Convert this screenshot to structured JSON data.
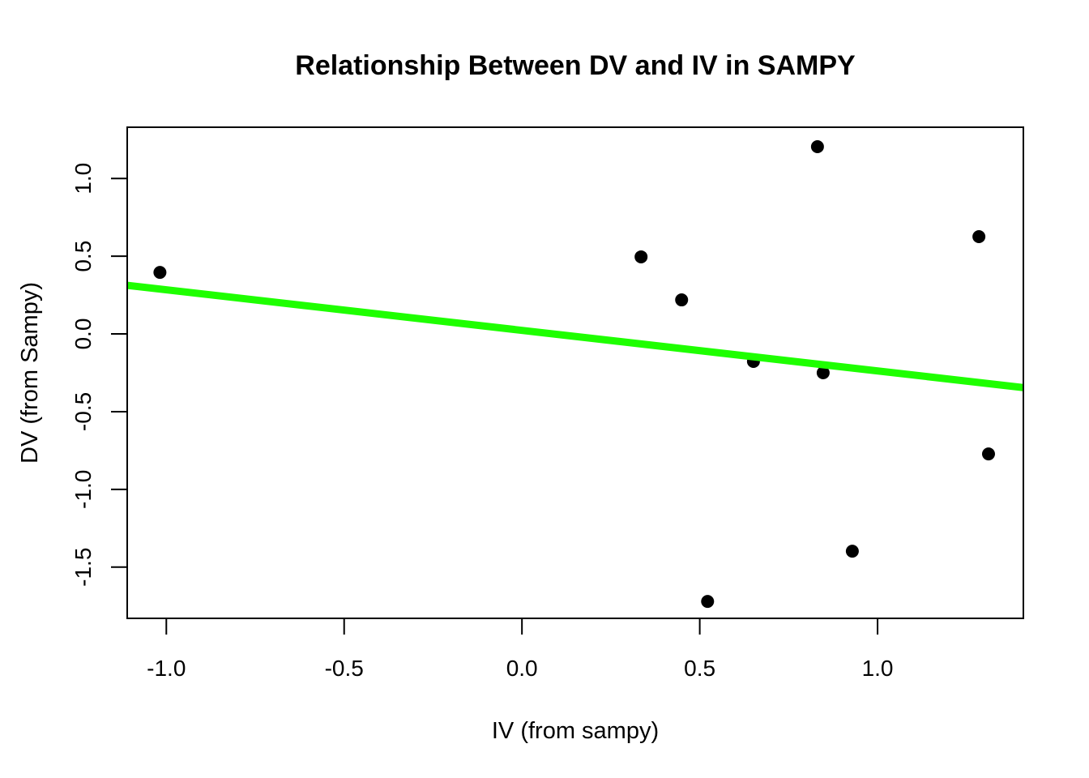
{
  "chart_data": {
    "type": "scatter",
    "title": "Relationship Between DV and IV in SAMPY",
    "xlabel": "IV (from sampy)",
    "ylabel": "DV (from Sampy)",
    "xlim": [
      -1.11,
      1.41
    ],
    "ylim": [
      -1.83,
      1.33
    ],
    "xticks": [
      -1.0,
      -0.5,
      0.0,
      0.5,
      1.0
    ],
    "xtick_labels": [
      "-1.0",
      "-0.5",
      "0.0",
      "0.5",
      "1.0"
    ],
    "yticks": [
      1.0,
      0.5,
      0.0,
      -0.5,
      -1.0,
      -1.5
    ],
    "ytick_labels": [
      "1.0",
      "0.5",
      "0.0",
      "-0.5",
      "-1.0",
      "-1.5"
    ],
    "grid": false,
    "points": [
      {
        "x": -1.018,
        "y": 0.396
      },
      {
        "x": 0.335,
        "y": 0.496
      },
      {
        "x": 0.449,
        "y": 0.219
      },
      {
        "x": 0.651,
        "y": -0.177
      },
      {
        "x": 0.831,
        "y": 1.205
      },
      {
        "x": 0.847,
        "y": -0.25
      },
      {
        "x": 0.929,
        "y": -1.398
      },
      {
        "x": 0.522,
        "y": -1.721
      },
      {
        "x": 1.285,
        "y": 0.626
      },
      {
        "x": 1.312,
        "y": -0.772
      }
    ],
    "regression_line": {
      "slope": -0.261,
      "intercept": 0.023,
      "color": "#1EFF00"
    },
    "point_color": "#000000"
  }
}
